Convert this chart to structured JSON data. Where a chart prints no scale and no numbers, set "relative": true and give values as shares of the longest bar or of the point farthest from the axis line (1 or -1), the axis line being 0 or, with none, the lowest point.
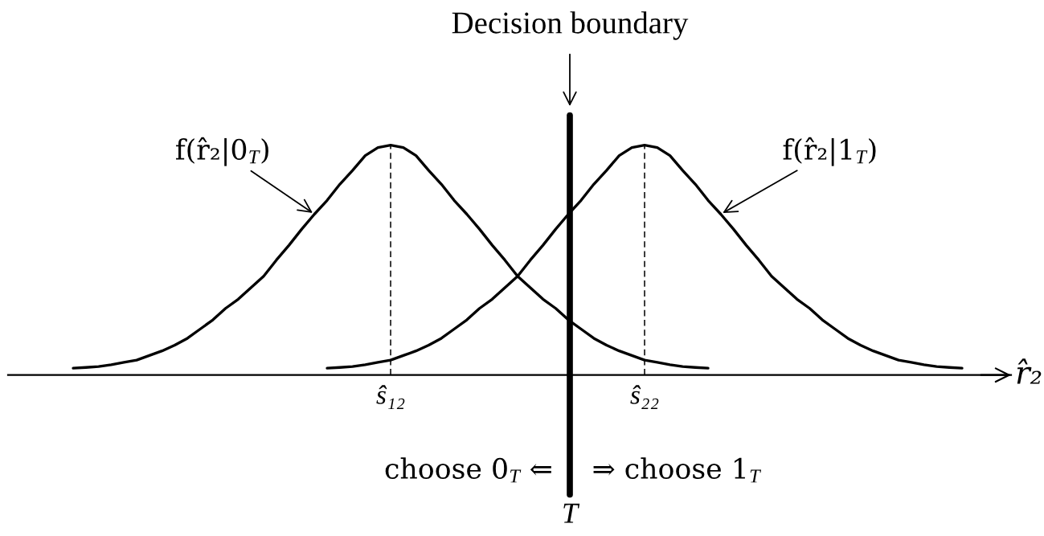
{
  "chart_data": {
    "type": "line",
    "relative": true,
    "categories": [
      null,
      null,
      null,
      null,
      null,
      null,
      null,
      null,
      null,
      null,
      null,
      null,
      null,
      null,
      null,
      null,
      null,
      null,
      null,
      null,
      null,
      null,
      null,
      null,
      null,
      "ŝ₁₂",
      null,
      null,
      null,
      null,
      null,
      null,
      null,
      null,
      null,
      null,
      null,
      null,
      null,
      null,
      null,
      null,
      null,
      null,
      null,
      "ŝ₂₂",
      null,
      null,
      null,
      null,
      null,
      null,
      null,
      null,
      null,
      null,
      null,
      null,
      null,
      null,
      null,
      null,
      null,
      null,
      null,
      null,
      null,
      null,
      null,
      null,
      null
    ],
    "xlabel": "r̂₂",
    "series": [
      {
        "name": "f(r̂₂|0$_{T}$)",
        "color": "#000000",
        "values": [
          0.03,
          0.033,
          0.037,
          0.045,
          0.055,
          0.065,
          0.085,
          0.105,
          0.13,
          0.16,
          0.2,
          0.24,
          0.29,
          0.33,
          0.38,
          0.43,
          0.5,
          0.565,
          0.635,
          0.7,
          0.76,
          0.83,
          0.89,
          0.955,
          0.99,
          1.0,
          0.99,
          0.955,
          0.89,
          0.83,
          0.76,
          0.7,
          0.635,
          0.565,
          0.5,
          0.43,
          0.38,
          0.33,
          0.29,
          0.24,
          0.2,
          0.16,
          0.13,
          0.105,
          0.085,
          0.065,
          0.055,
          0.045,
          0.037,
          0.033,
          0.03,
          null,
          null,
          null,
          null,
          null,
          null,
          null,
          null,
          null,
          null,
          null,
          null,
          null,
          null,
          null,
          null,
          null,
          null,
          null,
          null
        ]
      },
      {
        "name": "f(r̂₂|1$_{T}$)",
        "color": "#000000",
        "values": [
          null,
          null,
          null,
          null,
          null,
          null,
          null,
          null,
          null,
          null,
          null,
          null,
          null,
          null,
          null,
          null,
          null,
          null,
          null,
          null,
          0.03,
          0.033,
          0.037,
          0.045,
          0.055,
          0.065,
          0.085,
          0.105,
          0.13,
          0.16,
          0.2,
          0.24,
          0.29,
          0.33,
          0.38,
          0.43,
          0.5,
          0.565,
          0.635,
          0.7,
          0.76,
          0.83,
          0.89,
          0.955,
          0.99,
          1.0,
          0.99,
          0.955,
          0.89,
          0.83,
          0.76,
          0.7,
          0.635,
          0.565,
          0.5,
          0.43,
          0.38,
          0.33,
          0.29,
          0.24,
          0.2,
          0.16,
          0.13,
          0.105,
          0.085,
          0.065,
          0.055,
          0.045,
          0.037,
          0.033,
          0.03
        ]
      }
    ],
    "ref_lines": [
      {
        "axis": "x",
        "value": "ŝ₁₂",
        "line_style": "dashed",
        "color": "#000000"
      },
      {
        "axis": "x",
        "value": "ŝ₂₂",
        "line_style": "dashed",
        "color": "#000000"
      }
    ],
    "annotations": [
      "Decision boundary",
      "choose 0$_{T}$ ⇐",
      "⇒ choose 1$_{T}$",
      "T"
    ]
  }
}
